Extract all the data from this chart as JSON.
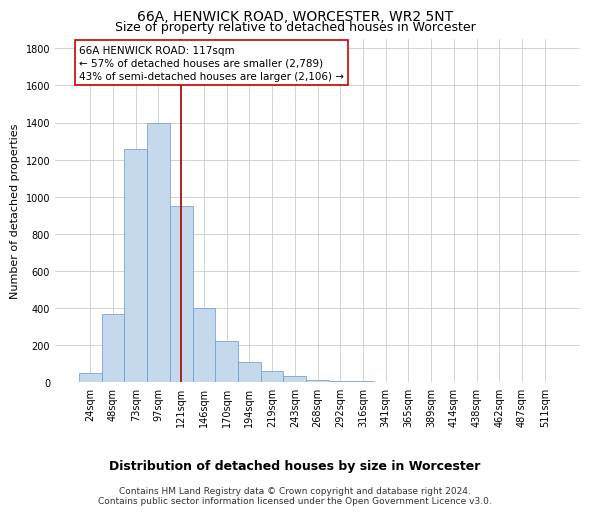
{
  "title": "66A, HENWICK ROAD, WORCESTER, WR2 5NT",
  "subtitle": "Size of property relative to detached houses in Worcester",
  "xlabel": "Distribution of detached houses by size in Worcester",
  "ylabel": "Number of detached properties",
  "categories": [
    "24sqm",
    "48sqm",
    "73sqm",
    "97sqm",
    "121sqm",
    "146sqm",
    "170sqm",
    "194sqm",
    "219sqm",
    "243sqm",
    "268sqm",
    "292sqm",
    "316sqm",
    "341sqm",
    "365sqm",
    "389sqm",
    "414sqm",
    "438sqm",
    "462sqm",
    "487sqm",
    "511sqm"
  ],
  "values": [
    50,
    370,
    1260,
    1400,
    950,
    400,
    225,
    110,
    60,
    35,
    15,
    10,
    5,
    3,
    2,
    2,
    1,
    1,
    1,
    1,
    1
  ],
  "bar_color": "#c6d9ec",
  "bar_edge_color": "#6699cc",
  "vline_x": 4.0,
  "vline_color": "#aa0000",
  "annotation_line1": "66A HENWICK ROAD: 117sqm",
  "annotation_line2": "← 57% of detached houses are smaller (2,789)",
  "annotation_line3": "43% of semi-detached houses are larger (2,106) →",
  "footnote": "Contains HM Land Registry data © Crown copyright and database right 2024.\nContains public sector information licensed under the Open Government Licence v3.0.",
  "ylim": [
    0,
    1850
  ],
  "yticks": [
    0,
    200,
    400,
    600,
    800,
    1000,
    1200,
    1400,
    1600,
    1800
  ],
  "grid_color": "#cccccc",
  "bg_color": "#ffffff",
  "title_fontsize": 10,
  "subtitle_fontsize": 9,
  "ylabel_fontsize": 8,
  "xlabel_fontsize": 9,
  "tick_fontsize": 7,
  "footnote_fontsize": 6.5,
  "annotation_fontsize": 7.5
}
